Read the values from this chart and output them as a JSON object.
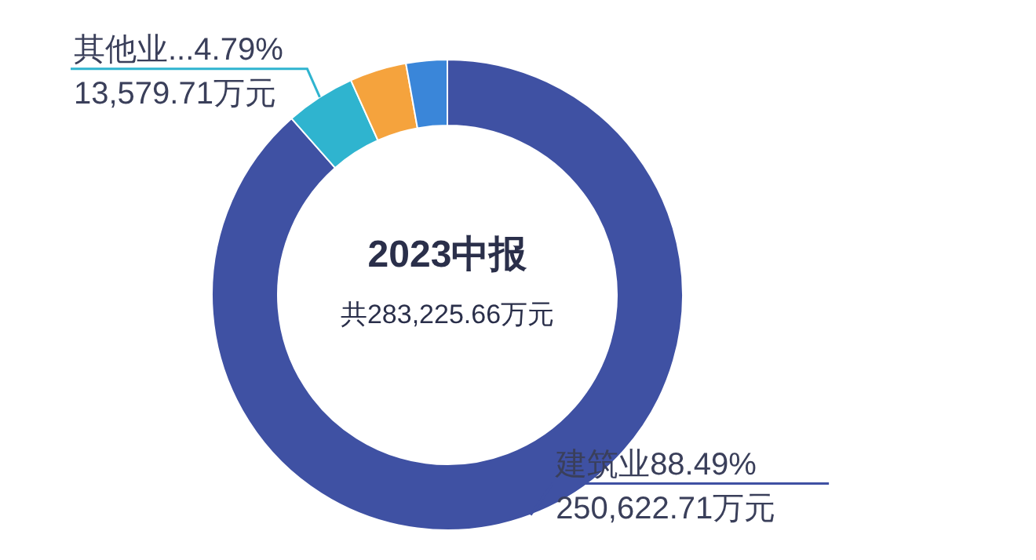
{
  "chart_data": {
    "type": "donut",
    "title": "2023中报",
    "subtitle": "共283,225.66万元",
    "categories": [
      "建筑业",
      "其他业...",
      null,
      null
    ],
    "values": [
      88.49,
      4.79,
      3.9,
      2.82
    ],
    "colors": [
      "#3f51a3",
      "#2fb4cf",
      "#f5a33d",
      "#3a86d9"
    ],
    "value_labels": [
      "88.49%",
      "4.79%",
      null,
      null
    ],
    "annotations": [
      {
        "text": "250,622.71万元",
        "x": "建筑业"
      },
      {
        "text": "13,579.71万元",
        "x": "其他业..."
      }
    ]
  }
}
